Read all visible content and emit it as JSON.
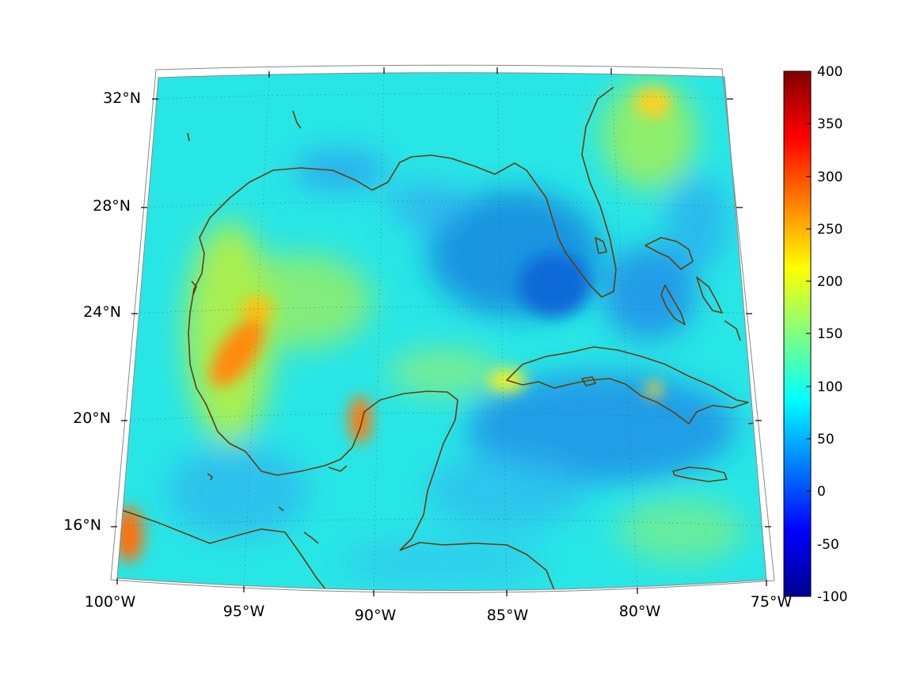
{
  "map": {
    "projection": "lambert-conic",
    "lon_range": [
      -100,
      -75
    ],
    "lat_range": [
      14,
      33
    ],
    "lat_labels": [
      "32°N",
      "28°N",
      "24°N",
      "20°N",
      "16°N"
    ],
    "lon_labels": [
      "100°W",
      "95°W",
      "90°W",
      "85°W",
      "80°W",
      "75°W"
    ],
    "grid": true,
    "coastline_color": "#6b3d0a",
    "colormap": "jet"
  },
  "colorbar": {
    "min": -100,
    "max": 400,
    "tick_labels": [
      "400",
      "350",
      "300",
      "250",
      "200",
      "150",
      "100",
      "50",
      "0",
      "-50",
      "-100"
    ]
  }
}
